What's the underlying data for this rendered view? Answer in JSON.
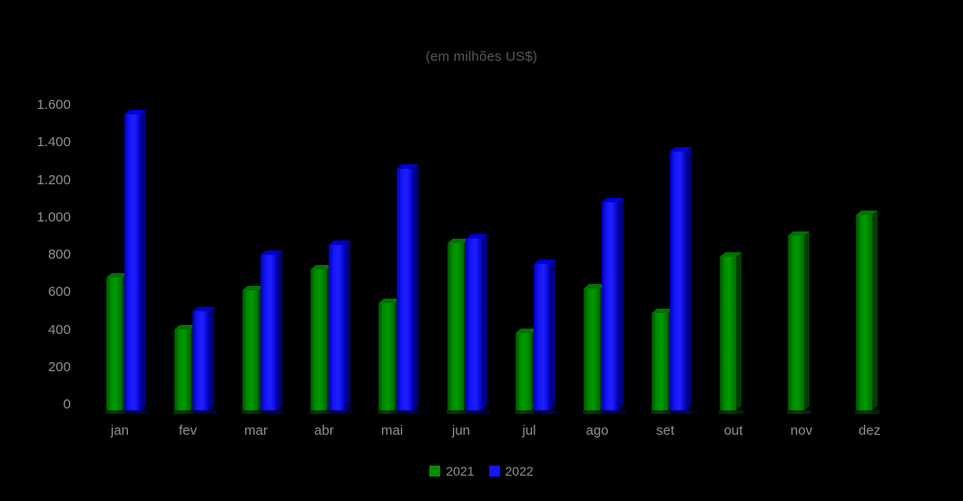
{
  "title": "(em milhões US$)",
  "colors": {
    "background": "#000000",
    "series_2021": "#008f00",
    "series_2022": "#1414ff",
    "axis_label_text": "#8f8f8f",
    "title_text": "#575757"
  },
  "chart_data": {
    "type": "bar",
    "style": "3d-column",
    "title": "(em milhões US$)",
    "categories": [
      "jan",
      "fev",
      "mar",
      "abr",
      "mai",
      "jun",
      "jul",
      "ago",
      "set",
      "out",
      "nov",
      "dez"
    ],
    "series": [
      {
        "name": "2021",
        "color": "#008f00",
        "values": [
          710,
          430,
          640,
          750,
          570,
          890,
          410,
          650,
          520,
          820,
          930,
          1040
        ]
      },
      {
        "name": "2022",
        "color": "#1414ff",
        "values": [
          1580,
          530,
          830,
          880,
          1290,
          915,
          780,
          1110,
          1380,
          null,
          null,
          null
        ]
      }
    ],
    "xlabel": "",
    "ylabel": "",
    "ylim": [
      0,
      1600
    ],
    "ytick_labels": [
      "1.600",
      "1.400",
      "1.200",
      "1.000",
      "800",
      "600",
      "400",
      "200",
      "0"
    ],
    "ytick_values": [
      1600,
      1400,
      1200,
      1000,
      800,
      600,
      400,
      200,
      0
    ],
    "grid": false,
    "legend_position": "bottom"
  }
}
